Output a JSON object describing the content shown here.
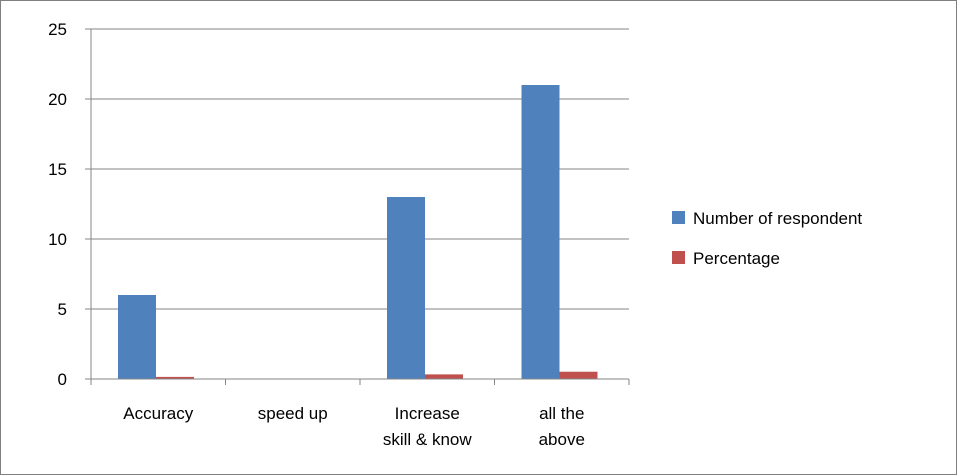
{
  "chart_data": {
    "type": "bar",
    "categories": [
      "Accuracy",
      "speed up",
      "Increase skill & know",
      "all the above"
    ],
    "category_lines": [
      [
        "Accuracy"
      ],
      [
        "speed up"
      ],
      [
        "Increase",
        "skill & know"
      ],
      [
        "all the",
        "above"
      ]
    ],
    "series": [
      {
        "name": "Number of respondent",
        "values": [
          6,
          0,
          13,
          21
        ],
        "color": "#4F81BD"
      },
      {
        "name": "Percentage",
        "values": [
          0.15,
          0,
          0.33,
          0.52
        ],
        "color": "#C0504D"
      }
    ],
    "ylim": [
      0,
      25
    ],
    "yticks": [
      0,
      5,
      10,
      15,
      20,
      25
    ],
    "grid": true,
    "legend_position": "right"
  }
}
